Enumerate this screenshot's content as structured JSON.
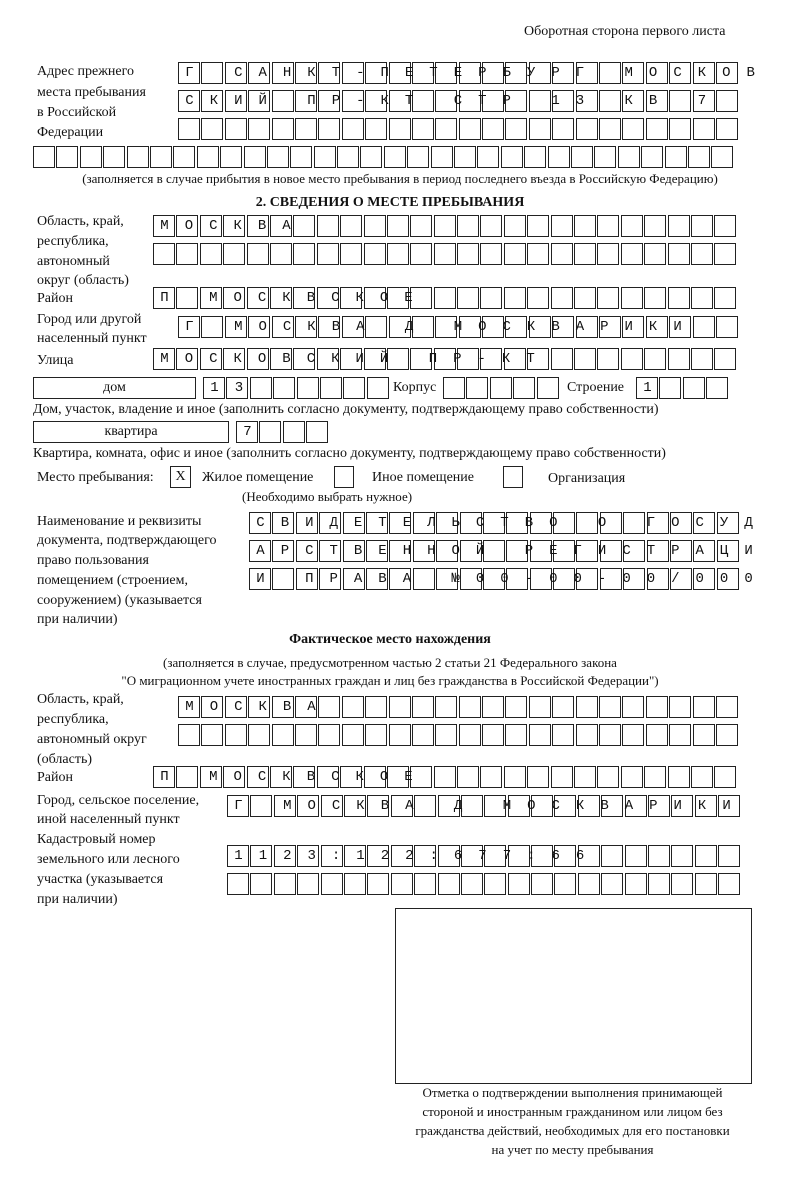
{
  "header": {
    "page_side": "Оборотная сторона первого листа"
  },
  "previous_address": {
    "label_lines": [
      "Адрес прежнего",
      "места пребывания",
      "в Российской",
      "Федерации"
    ],
    "rows": [
      "Г САНКТ-ПЕТЕРБУРГ МОСКОВ",
      "СКИЙ ПР-КТ СТР 13 КВ 7",
      "",
      ""
    ],
    "note": "(заполняется в случае прибытия в новое место пребывания в период последнего въезда в Российскую Федерацию)"
  },
  "section2": {
    "title": "2. СВЕДЕНИЯ О МЕСТЕ ПРЕБЫВАНИЯ",
    "region": {
      "label_lines": [
        "Область, край,",
        "республика,",
        "автономный",
        "округ (область)"
      ],
      "rows": [
        "МОСКВА",
        ""
      ]
    },
    "district": {
      "label": "Район",
      "value": "П МОСКВСКОЕ"
    },
    "city": {
      "label_lines": [
        "Город или другой",
        "населенный пункт"
      ],
      "value": "Г МОСКВА Д МОСКВАРИКИ"
    },
    "street": {
      "label": "Улица",
      "value": "МОСКОВСКИЙ ПР-КТ"
    },
    "house": {
      "type": "дом",
      "number": "13",
      "korpus_label": "Корпус",
      "korpus": "",
      "stroenie_label": "Строение",
      "stroenie": "1",
      "note": "Дом, участок, владение и иное (заполнить согласно документу, подтверждающему право собственности)"
    },
    "apartment": {
      "type": "квартира",
      "number": "7",
      "note": "Квартира, комната, офис и иное (заполнить согласно документу, подтверждающему право собственности)"
    },
    "stay_place": {
      "label": "Место пребывания:",
      "options": [
        {
          "label": "Жилое помещение",
          "mark": "X"
        },
        {
          "label": "Иное помещение",
          "mark": ""
        },
        {
          "label": "Организация",
          "mark": ""
        }
      ],
      "note": "(Необходимо выбрать нужное)"
    },
    "document": {
      "label_lines": [
        "Наименование и реквизиты",
        "документа, подтверждающего",
        "право пользования",
        "помещением (строением,",
        "сооружением) (указывается",
        "при наличии)"
      ],
      "rows": [
        "СВИДЕТЕЛЬСТВО О ГОСУД",
        "АРСТВЕННОЙ РЕГИСТРАЦИ",
        "И ПРАВА №00-00-00/000"
      ]
    }
  },
  "actual": {
    "title": "Фактическое место нахождения",
    "note_lines": [
      "(заполняется в случае, предусмотренном частью 2 статьи 21 Федерального закона",
      "\"О миграционном учете иностранных граждан и лиц без гражданства в Российской Федерации\")"
    ],
    "region": {
      "label_lines": [
        "Область, край,",
        "республика,",
        "автономный округ",
        "(область)"
      ],
      "rows": [
        "МОСКВА",
        ""
      ]
    },
    "district": {
      "label": "Район",
      "value": "П МОСКВСКОЕ"
    },
    "city": {
      "label_lines": [
        "Город, сельское поселение,",
        "иной населенный пункт"
      ],
      "value": "Г МОСКВА Д МОСКВАРИКИ"
    },
    "cadastral": {
      "label_lines": [
        "Кадастровый номер",
        "земельного или лесного",
        "участка (указывается",
        "при наличии)"
      ],
      "rows": [
        "1123:122:677:66",
        ""
      ]
    }
  },
  "confirmation": {
    "caption_lines": [
      "Отметка о подтверждении выполнения принимающей",
      "стороной и иностранным гражданином или лицом без",
      "гражданства действий, необходимых для его постановки",
      "на учет по месту пребывания"
    ]
  }
}
